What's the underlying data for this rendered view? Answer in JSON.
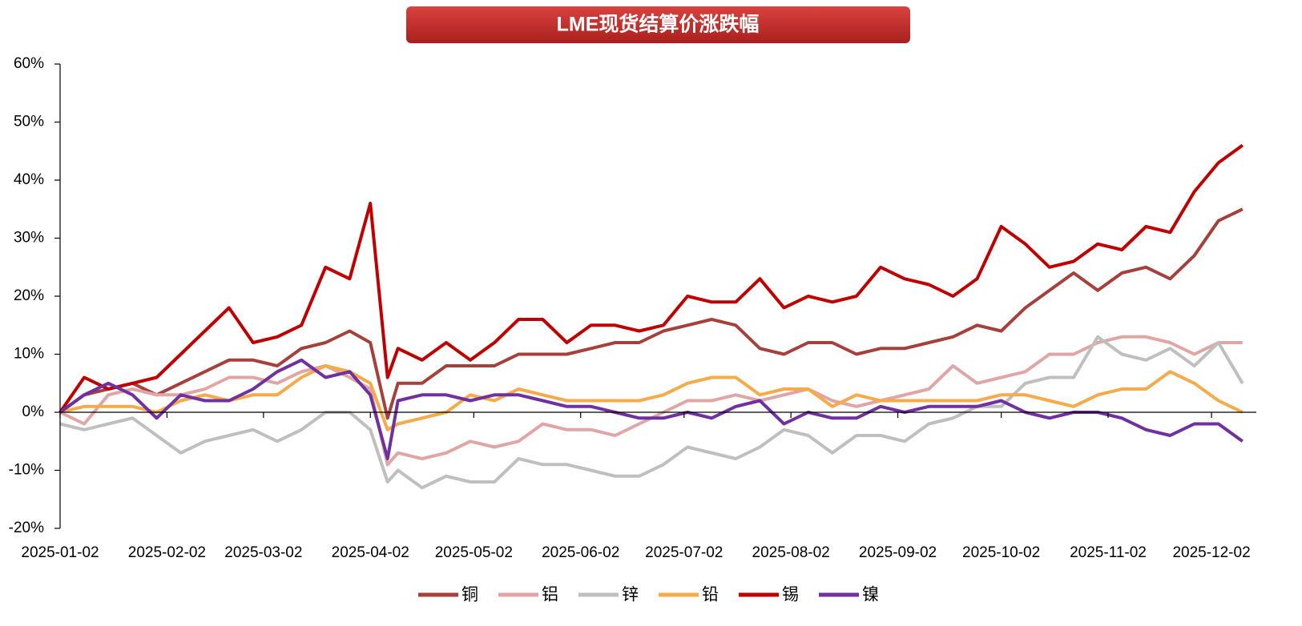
{
  "chart_data": {
    "type": "line",
    "title": "LME现货结算价涨跌幅",
    "x": [
      "2025-01-02",
      "2025-01-09",
      "2025-01-16",
      "2025-01-23",
      "2025-01-30",
      "2025-02-06",
      "2025-02-13",
      "2025-02-20",
      "2025-02-27",
      "2025-03-06",
      "2025-03-13",
      "2025-03-20",
      "2025-03-27",
      "2025-04-02",
      "2025-04-07",
      "2025-04-10",
      "2025-04-17",
      "2025-04-24",
      "2025-05-01",
      "2025-05-08",
      "2025-05-15",
      "2025-05-22",
      "2025-05-29",
      "2025-06-05",
      "2025-06-12",
      "2025-06-19",
      "2025-06-26",
      "2025-07-03",
      "2025-07-10",
      "2025-07-17",
      "2025-07-24",
      "2025-07-31",
      "2025-08-07",
      "2025-08-14",
      "2025-08-21",
      "2025-08-28",
      "2025-09-04",
      "2025-09-11",
      "2025-09-18",
      "2025-09-25",
      "2025-10-02",
      "2025-10-09",
      "2025-10-16",
      "2025-10-23",
      "2025-10-30",
      "2025-11-06",
      "2025-11-13",
      "2025-11-20",
      "2025-11-27",
      "2025-12-04",
      "2025-12-11"
    ],
    "series": [
      {
        "name": "铜",
        "color": "#a5403b",
        "values": [
          0,
          3,
          4,
          5,
          3,
          5,
          7,
          9,
          9,
          8,
          11,
          12,
          14,
          12,
          -1,
          5,
          5,
          8,
          8,
          8,
          10,
          10,
          10,
          11,
          12,
          12,
          14,
          15,
          16,
          15,
          11,
          10,
          12,
          12,
          10,
          11,
          11,
          12,
          13,
          15,
          14,
          18,
          21,
          24,
          21,
          24,
          25,
          23,
          27,
          33,
          35
        ]
      },
      {
        "name": "铝",
        "color": "#e0a6a6",
        "values": [
          0,
          -2,
          3,
          4,
          3,
          3,
          4,
          6,
          6,
          5,
          7,
          8,
          6,
          4,
          -9,
          -7,
          -8,
          -7,
          -5,
          -6,
          -5,
          -2,
          -3,
          -3,
          -4,
          -2,
          0,
          2,
          2,
          3,
          2,
          3,
          4,
          2,
          1,
          2,
          3,
          4,
          8,
          5,
          6,
          7,
          10,
          10,
          12,
          13,
          13,
          12,
          10,
          12,
          12
        ]
      },
      {
        "name": "锌",
        "color": "#bfbfbf",
        "values": [
          -2,
          -3,
          -2,
          -1,
          -4,
          -7,
          -5,
          -4,
          -3,
          -5,
          -3,
          0,
          0,
          -3,
          -12,
          -10,
          -13,
          -11,
          -12,
          -12,
          -8,
          -9,
          -9,
          -10,
          -11,
          -11,
          -9,
          -6,
          -7,
          -8,
          -6,
          -3,
          -4,
          -7,
          -4,
          -4,
          -5,
          -2,
          -1,
          1,
          1,
          5,
          6,
          6,
          13,
          10,
          9,
          11,
          8,
          12,
          5
        ]
      },
      {
        "name": "铅",
        "color": "#f5ab4a",
        "values": [
          0,
          1,
          1,
          1,
          0,
          2,
          3,
          2,
          3,
          3,
          6,
          8,
          7,
          5,
          -3,
          -2,
          -1,
          0,
          3,
          2,
          4,
          3,
          2,
          2,
          2,
          2,
          3,
          5,
          6,
          6,
          3,
          4,
          4,
          1,
          3,
          2,
          2,
          2,
          2,
          2,
          3,
          3,
          2,
          1,
          3,
          4,
          4,
          7,
          5,
          2,
          0
        ]
      },
      {
        "name": "锡",
        "color": "#c00000",
        "values": [
          0,
          6,
          4,
          5,
          6,
          10,
          14,
          18,
          12,
          13,
          15,
          25,
          23,
          36,
          6,
          11,
          9,
          12,
          9,
          12,
          16,
          16,
          12,
          15,
          15,
          14,
          15,
          20,
          19,
          19,
          23,
          18,
          20,
          19,
          20,
          25,
          23,
          22,
          20,
          23,
          32,
          29,
          25,
          26,
          29,
          28,
          32,
          31,
          38,
          43,
          46
        ]
      },
      {
        "name": "镍",
        "color": "#7030a0",
        "values": [
          0,
          3,
          5,
          3,
          -1,
          3,
          2,
          2,
          4,
          7,
          9,
          6,
          7,
          3,
          -8,
          2,
          3,
          3,
          2,
          3,
          3,
          2,
          1,
          1,
          0,
          -1,
          -1,
          0,
          -1,
          1,
          2,
          -2,
          0,
          -1,
          -1,
          1,
          0,
          1,
          1,
          1,
          2,
          0,
          -1,
          0,
          0,
          -1,
          -3,
          -4,
          -2,
          -2,
          -5
        ]
      }
    ],
    "xlim": [
      "2025-01-02",
      "2025-12-15"
    ],
    "xticks": [
      "2025-01-02",
      "2025-02-02",
      "2025-03-02",
      "2025-04-02",
      "2025-05-02",
      "2025-06-02",
      "2025-07-02",
      "2025-08-02",
      "2025-09-02",
      "2025-10-02",
      "2025-11-02",
      "2025-12-02"
    ],
    "ylim": [
      -20,
      60
    ],
    "yticks": [
      {
        "value": -20,
        "label": "-20%"
      },
      {
        "value": -10,
        "label": "-10%"
      },
      {
        "value": 0,
        "label": "0%"
      },
      {
        "value": 10,
        "label": "10%"
      },
      {
        "value": 20,
        "label": "20%"
      },
      {
        "value": 30,
        "label": "30%"
      },
      {
        "value": 40,
        "label": "40%"
      },
      {
        "value": 50,
        "label": "50%"
      },
      {
        "value": 60,
        "label": "60%"
      }
    ],
    "grid": false,
    "legend": "bottom"
  }
}
